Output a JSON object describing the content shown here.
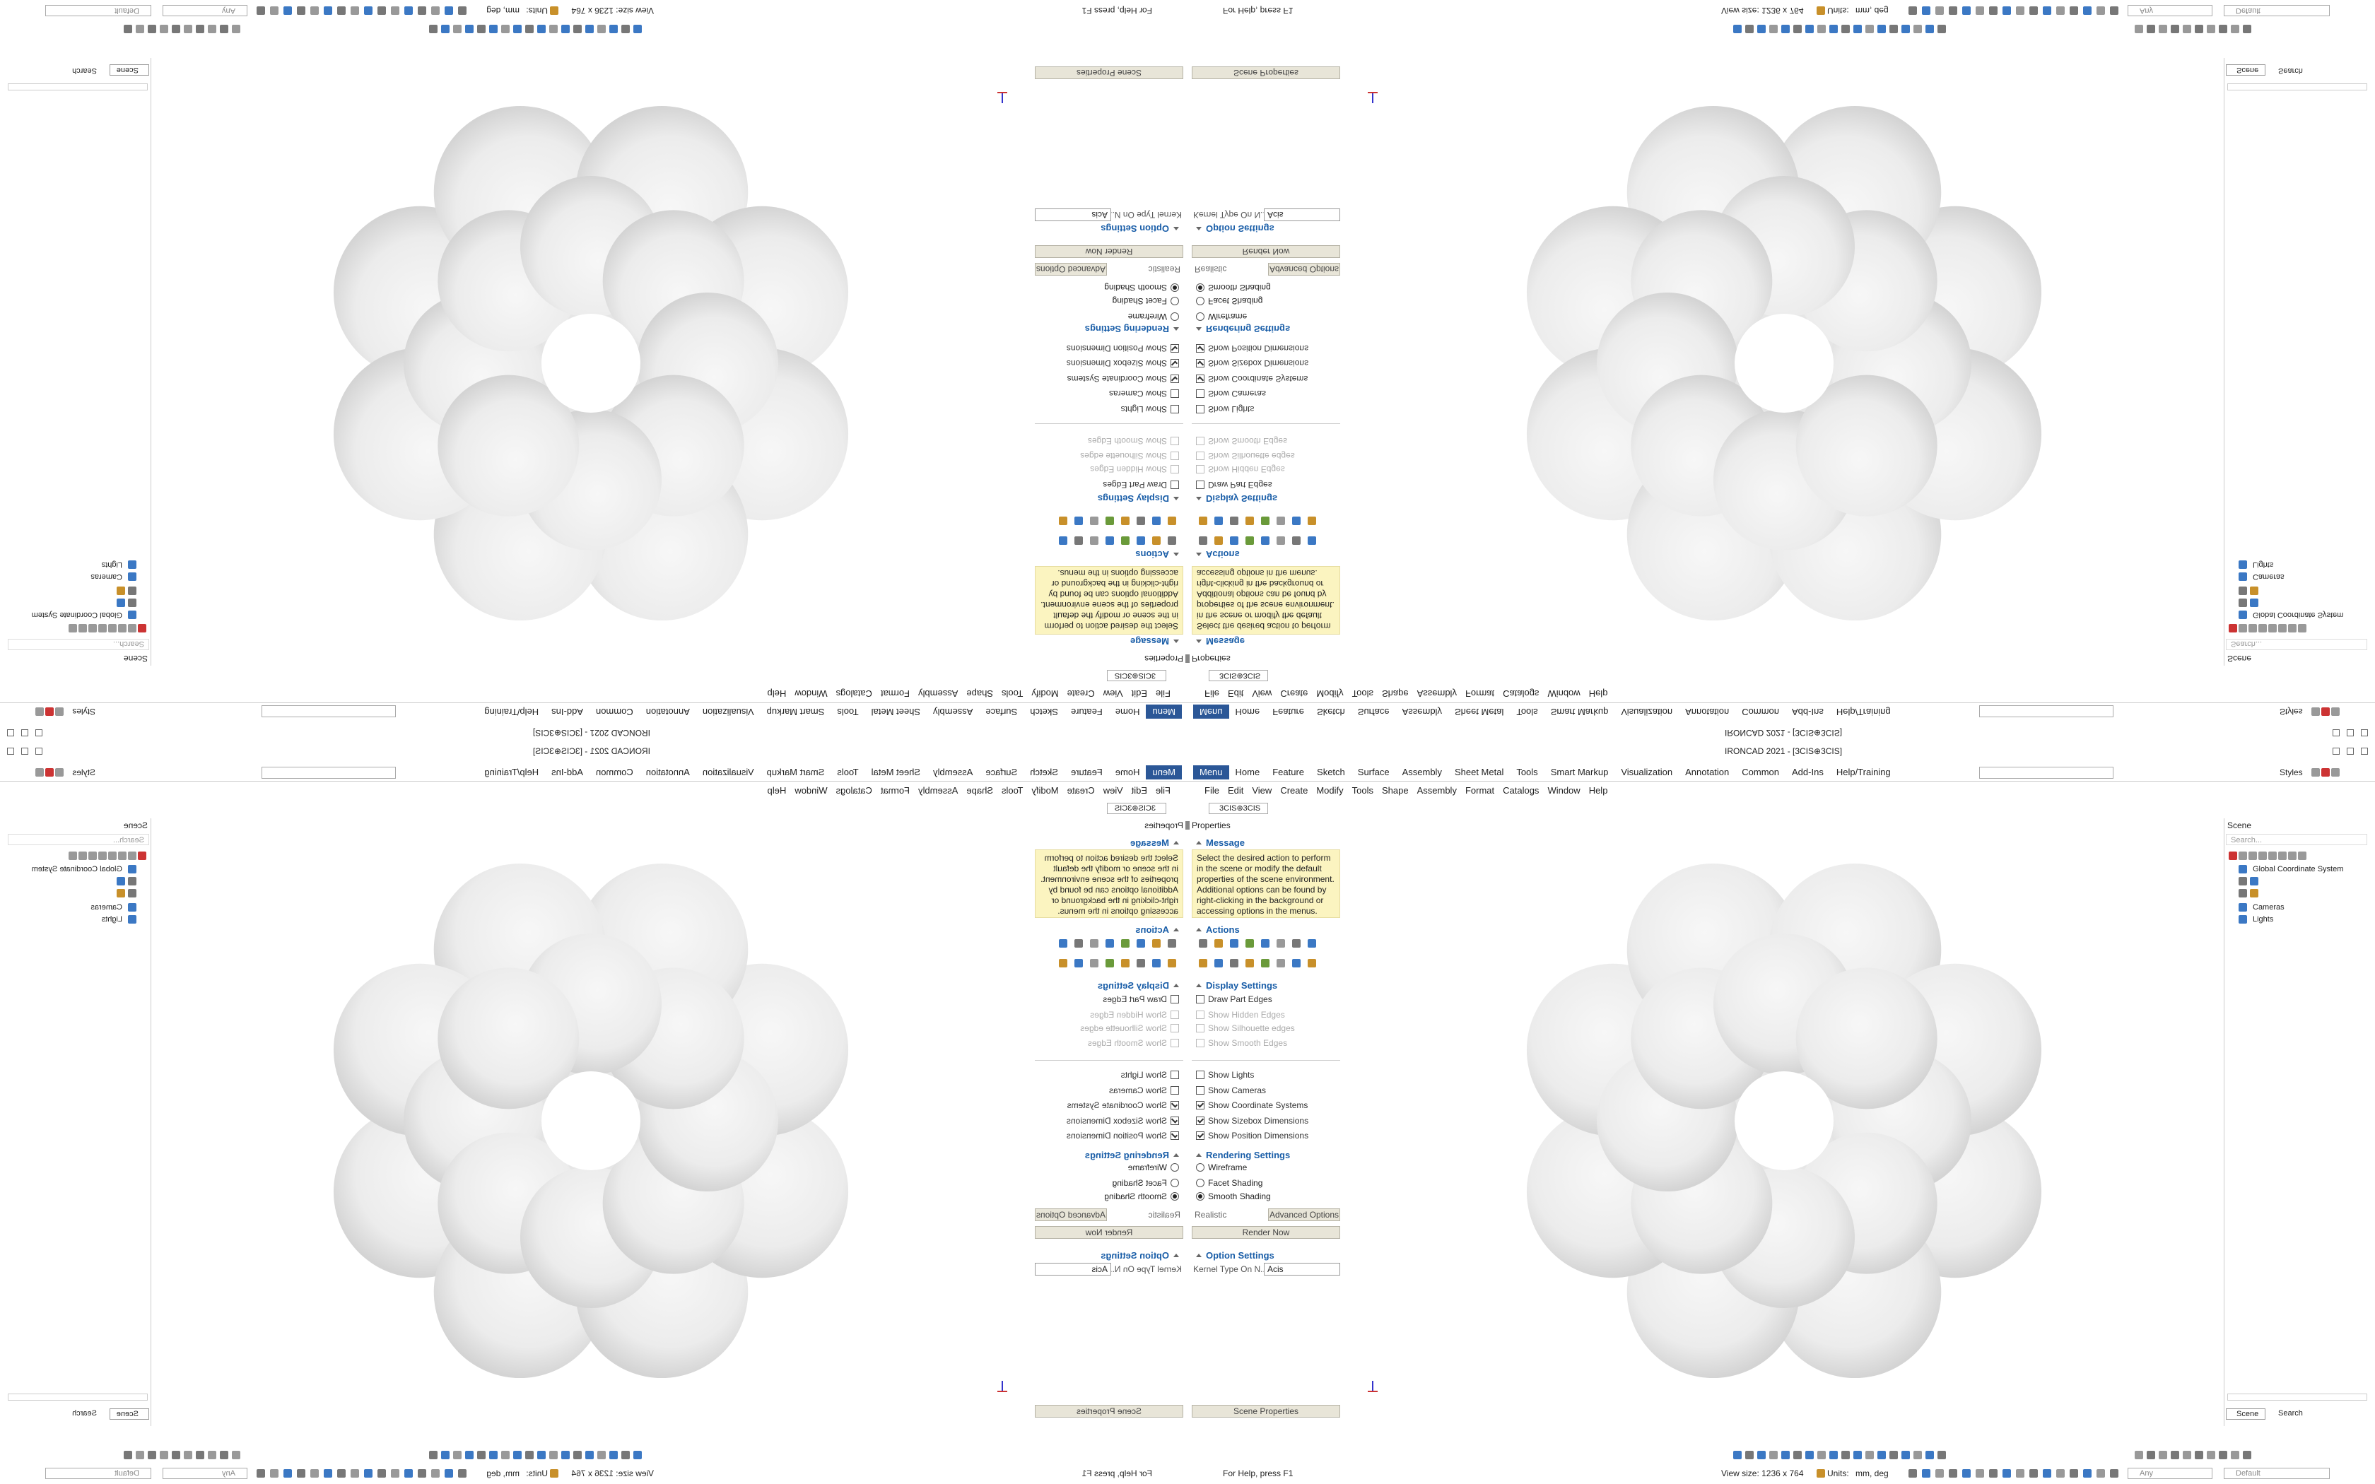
{
  "title_bar": {
    "title": "IRONCAD 2021 - [3CIS⊕3CIS]"
  },
  "ribbon": {
    "tabs": [
      "Menu",
      "Home",
      "Feature",
      "Sketch",
      "Surface",
      "Assembly",
      "Sheet Metal",
      "Tools",
      "Smart Markup",
      "Visualization",
      "Annotation",
      "Common",
      "Add-Ins",
      "Help/Training"
    ],
    "styles": "Styles"
  },
  "menu_bar": [
    "File",
    "Edit",
    "View",
    "Create",
    "Modify",
    "Tools",
    "Shape",
    "Assembly",
    "Format",
    "Catalogs",
    "Window",
    "Help"
  ],
  "document_tab": "3CIS⊕3CIS",
  "properties": {
    "header": "Properties",
    "message_title": "Message",
    "message": "Select the desired action to perform in the scene or modify the default properties of the scene environment. Additional options can be found by right-clicking in the background or accessing options in the menus.",
    "actions_title": "Actions",
    "display_title": "Display Settings",
    "display_options": [
      {
        "label": "Draw Part Edges",
        "checked": false,
        "enabled": true
      },
      {
        "label": "Show Hidden Edges",
        "checked": false,
        "enabled": false
      },
      {
        "label": "Show Silhouette edges",
        "checked": false,
        "enabled": false
      },
      {
        "label": "Show Smooth Edges",
        "checked": false,
        "enabled": false
      }
    ],
    "visibility_options": [
      {
        "label": "Show Lights",
        "checked": false,
        "enabled": true
      },
      {
        "label": "Show Cameras",
        "checked": false,
        "enabled": true
      },
      {
        "label": "Show Coordinate Systems",
        "checked": true,
        "enabled": true
      },
      {
        "label": "Show Sizebox Dimensions",
        "checked": true,
        "enabled": true
      },
      {
        "label": "Show Position Dimensions",
        "checked": true,
        "enabled": true
      }
    ],
    "rendering_title": "Rendering Settings",
    "rendering_options": [
      {
        "label": "Wireframe",
        "selected": false
      },
      {
        "label": "Facet Shading",
        "selected": false
      },
      {
        "label": "Smooth Shading",
        "selected": true
      }
    ],
    "realistic": "Realistic",
    "advanced_button": "Advanced Options",
    "render_button": "Render Now",
    "option_title": "Option Settings",
    "kernel_label": "Kernel Type On N...",
    "kernel_value": "Acis"
  },
  "viewport": {
    "button": "Scene Properties"
  },
  "scene_browser": {
    "header": "Scene",
    "search_placeholder": "Search...",
    "items": [
      "Global Coordinate System",
      "Cameras",
      "Lights"
    ],
    "tabs": [
      "Scene",
      "Search"
    ]
  },
  "status_bar": {
    "help": "For Help, press F1",
    "view_size": "View size: 1236 x 764",
    "units_label": "Units:",
    "units": "mm, deg",
    "filter": "Any",
    "style": "Default"
  }
}
